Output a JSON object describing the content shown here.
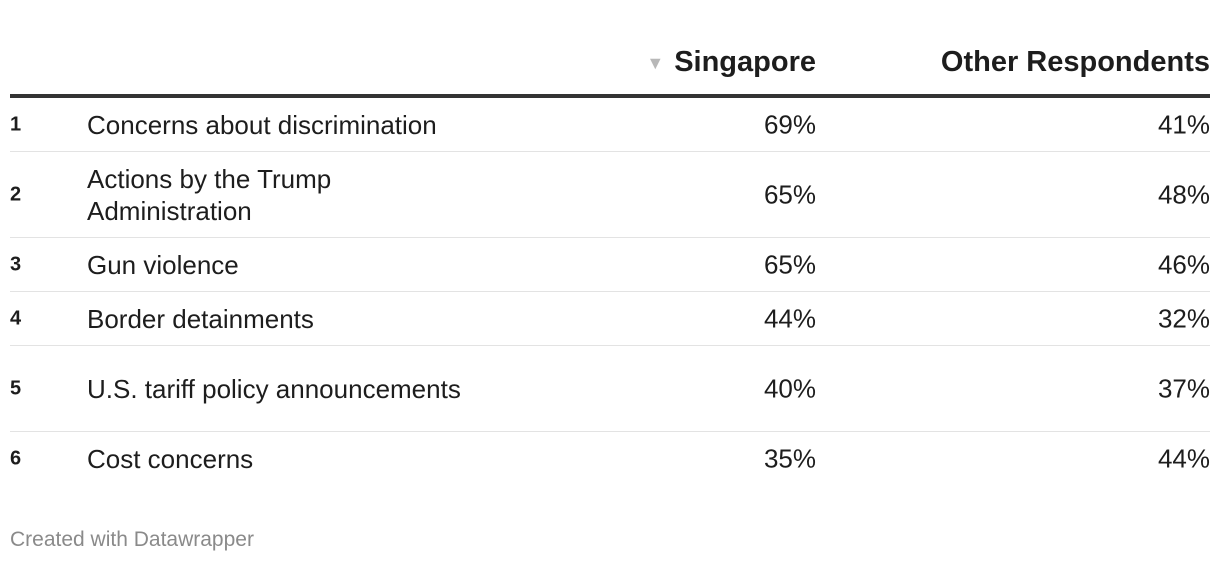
{
  "columns": {
    "rank": "",
    "label": "",
    "singapore": "Singapore",
    "other": "Other Respondents"
  },
  "sort_indicator": "▼",
  "rows": [
    {
      "rank": "1",
      "label": "Concerns about discrimination",
      "singapore": "69%",
      "other": "41%"
    },
    {
      "rank": "2",
      "label": "Actions by the Trump Administration",
      "singapore": "65%",
      "other": "48%"
    },
    {
      "rank": "3",
      "label": "Gun violence",
      "singapore": "65%",
      "other": "46%"
    },
    {
      "rank": "4",
      "label": "Border detainments",
      "singapore": "44%",
      "other": "32%"
    },
    {
      "rank": "5",
      "label": "U.S. tariff policy announcements",
      "singapore": "40%",
      "other": "37%"
    },
    {
      "rank": "6",
      "label": "Cost concerns",
      "singapore": "35%",
      "other": "44%"
    }
  ],
  "footer": "Created with Datawrapper",
  "colors": {
    "text": "#1d1d1d",
    "header_rule": "#333333",
    "row_rule": "#e3e3e3",
    "sort_arrow": "#b8b8b8",
    "footer": "#8a8a8a"
  },
  "chart_data": {
    "type": "table",
    "columns": [
      "",
      "",
      "Singapore",
      "Other Respondents"
    ],
    "sorted_by": "Singapore",
    "sort_direction": "descending",
    "categories": [
      "Concerns about discrimination",
      "Actions by the Trump Administration",
      "Gun violence",
      "Border detainments",
      "U.S. tariff policy announcements",
      "Cost concerns"
    ],
    "series": [
      {
        "name": "Singapore",
        "values": [
          69,
          65,
          65,
          44,
          40,
          35
        ],
        "unit": "%"
      },
      {
        "name": "Other Respondents",
        "values": [
          41,
          48,
          46,
          32,
          37,
          44
        ],
        "unit": "%"
      }
    ]
  }
}
